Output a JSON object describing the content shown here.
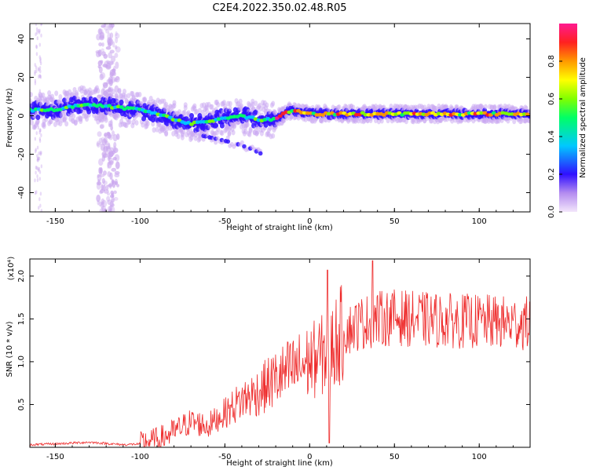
{
  "title": "C2E4.2022.350.02.48.R05",
  "chart_data": [
    {
      "type": "heatmap",
      "title": "C2E4.2022.350.02.48.R05",
      "xlabel": "Height of straight line (km)",
      "ylabel": "Frequency (Hz)",
      "xlim": [
        -165,
        130
      ],
      "ylim": [
        -50,
        48
      ],
      "x_ticks": [
        "-150",
        "-100",
        "-50",
        "0",
        "50",
        "100"
      ],
      "y_ticks": [
        "40",
        "20",
        "0",
        "-20",
        "-40"
      ],
      "colorbar": {
        "label": "Normalized spectral amplitude",
        "range": [
          0,
          1
        ],
        "ticks": [
          "0.0",
          "0.2",
          "0.4",
          "0.6",
          "0.8"
        ],
        "colors": [
          "#f3e6fb",
          "#b48cf0",
          "#3010ff",
          "#00c8ff",
          "#00ff66",
          "#80ff00",
          "#ffff00",
          "#ff9900",
          "#ff2020",
          "#ff1a90"
        ]
      },
      "ridge": {
        "x": [
          -165,
          -150,
          -140,
          -130,
          -120,
          -110,
          -100,
          -90,
          -80,
          -70,
          -60,
          -50,
          -40,
          -30,
          -20,
          -15,
          -10,
          -5,
          0,
          20,
          40,
          60,
          80,
          100,
          130
        ],
        "frequency": [
          3,
          3,
          5,
          6,
          5,
          4,
          3,
          1,
          -2,
          -4,
          -3,
          -1,
          0,
          -2,
          -2,
          1,
          3,
          2,
          1,
          1,
          1,
          1,
          1,
          1,
          1
        ]
      },
      "branch": {
        "x": [
          -65,
          -55,
          -45,
          -35,
          -28
        ],
        "frequency": [
          -10,
          -12,
          -14,
          -17,
          -20
        ]
      }
    },
    {
      "type": "line",
      "xlabel": "Height of straight line (km)",
      "ylabel": "SNR (10 * v/v)",
      "y_multiplier": "(x10⁴)",
      "xlim": [
        -165,
        130
      ],
      "ylim": [
        0,
        2.2
      ],
      "x_ticks": [
        "-150",
        "-100",
        "-50",
        "0",
        "50",
        "100"
      ],
      "y_ticks": [
        "0.5",
        "1.0",
        "1.5",
        "2.0"
      ],
      "color": "#ee2b2b",
      "envelope": {
        "x": [
          -165,
          -150,
          -130,
          -110,
          -100,
          -90,
          -80,
          -70,
          -60,
          -50,
          -40,
          -30,
          -20,
          -10,
          0,
          10,
          20,
          30,
          40,
          50,
          60,
          80,
          100,
          120,
          130
        ],
        "values": [
          0.03,
          0.04,
          0.06,
          0.03,
          0.04,
          0.08,
          0.18,
          0.3,
          0.25,
          0.4,
          0.55,
          0.65,
          0.8,
          0.9,
          1.0,
          1.1,
          1.35,
          1.45,
          1.5,
          1.52,
          1.5,
          1.48,
          1.47,
          1.45,
          1.45
        ]
      },
      "spikes": [
        {
          "x": 10.5,
          "value": 2.07
        },
        {
          "x": 37,
          "value": 2.18
        },
        {
          "x": 11.5,
          "value": 0.05
        }
      ]
    }
  ]
}
